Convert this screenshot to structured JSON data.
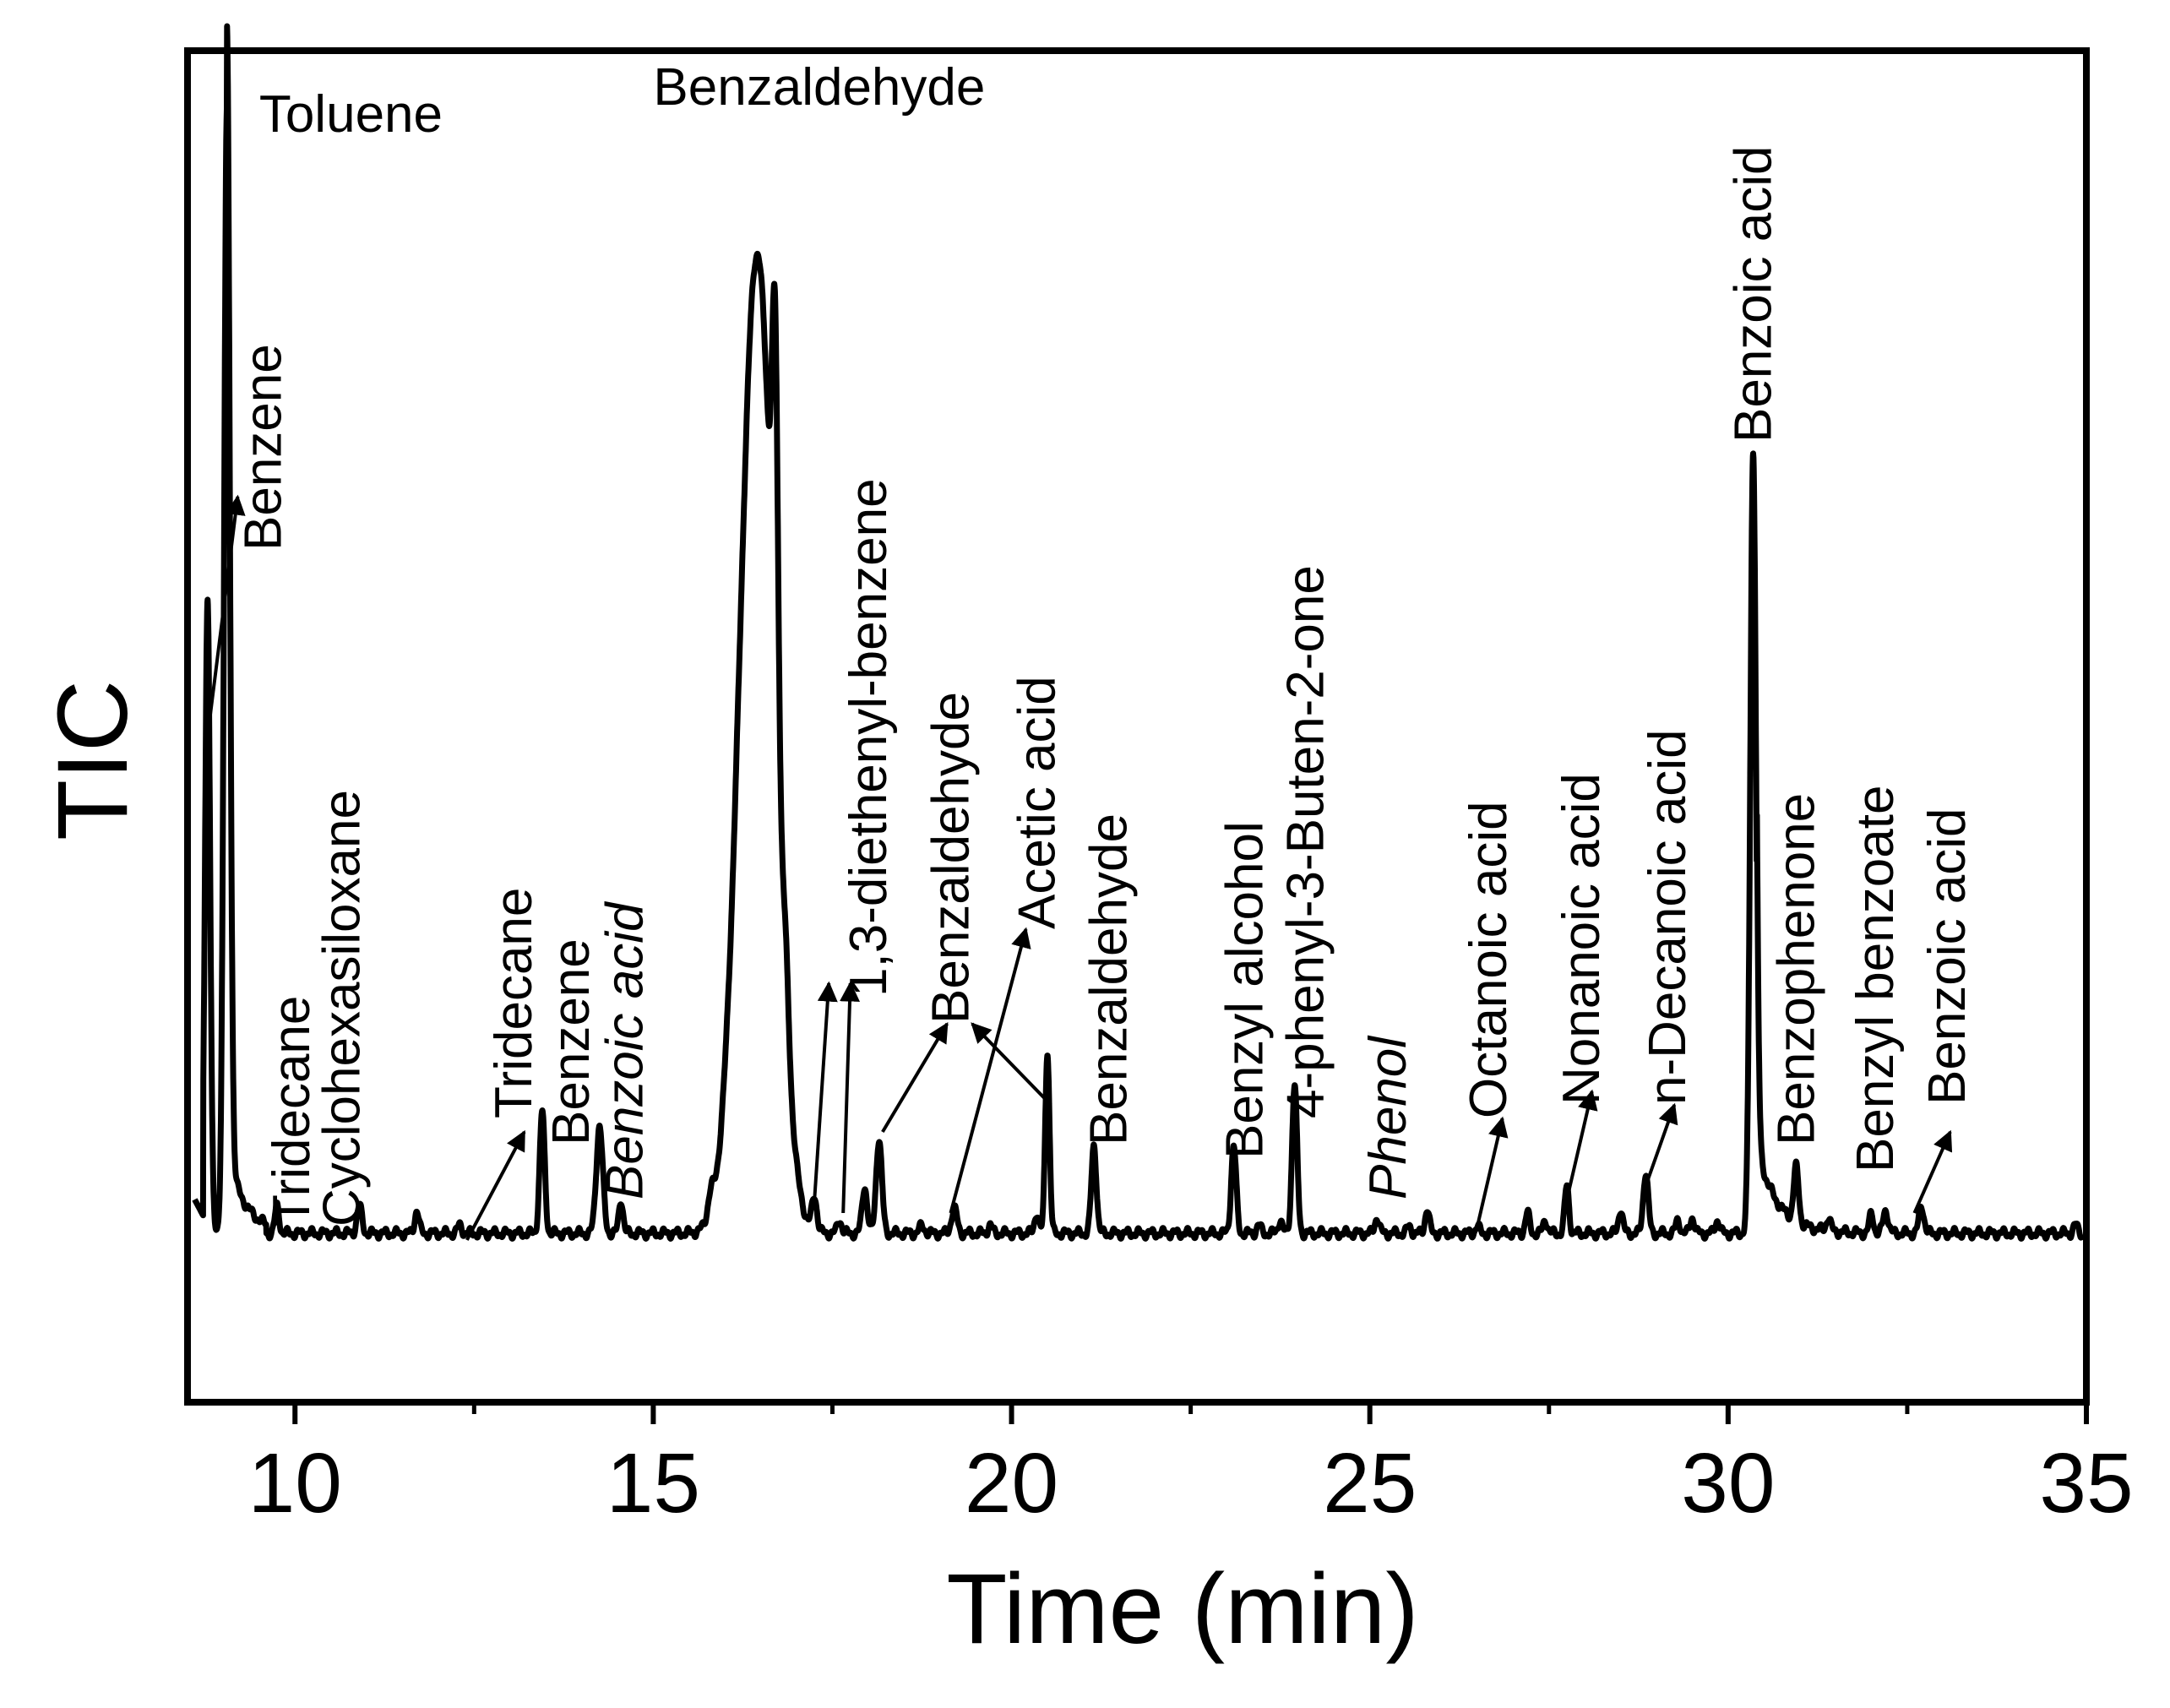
{
  "chart_data": {
    "type": "line",
    "title": "",
    "xlabel": "Time (min)",
    "ylabel": "TIC",
    "xlim": [
      8.5,
      35
    ],
    "ylim": [
      0,
      1
    ],
    "x_ticks": [
      10,
      15,
      20,
      25,
      30,
      35
    ],
    "x_tick_labels": [
      "10",
      "15",
      "20",
      "25",
      "30",
      "35"
    ],
    "grid": false,
    "legend": "none",
    "baseline": 0.125,
    "peaks": [
      {
        "t": 8.78,
        "h": 0.47,
        "w": 0.035
      },
      {
        "t": 9.05,
        "h": 0.83,
        "w": 0.04
      },
      {
        "t": 9.75,
        "h": 0.02,
        "w": 0.03
      },
      {
        "t": 10.9,
        "h": 0.02,
        "w": 0.035
      },
      {
        "t": 11.7,
        "h": 0.017,
        "w": 0.03
      },
      {
        "t": 12.3,
        "h": 0.006,
        "w": 0.03
      },
      {
        "t": 13.45,
        "h": 0.09,
        "w": 0.035
      },
      {
        "t": 14.25,
        "h": 0.08,
        "w": 0.045
      },
      {
        "t": 14.55,
        "h": 0.025,
        "w": 0.03
      },
      {
        "t": 15.8,
        "h": 0.015,
        "w": 0.04
      },
      {
        "t": 16.45,
        "h": 0.725,
        "w": 0.24
      },
      {
        "t": 16.7,
        "h": 0.27,
        "w": 0.04
      },
      {
        "t": 16.85,
        "h": 0.04,
        "w": 0.04
      },
      {
        "t": 17.25,
        "h": 0.025,
        "w": 0.035
      },
      {
        "t": 17.6,
        "h": 0.01,
        "w": 0.03
      },
      {
        "t": 17.95,
        "h": 0.035,
        "w": 0.035
      },
      {
        "t": 18.15,
        "h": 0.07,
        "w": 0.04
      },
      {
        "t": 18.75,
        "h": 0.005,
        "w": 0.04
      },
      {
        "t": 19.2,
        "h": 0.018,
        "w": 0.04
      },
      {
        "t": 19.7,
        "h": 0.006,
        "w": 0.03
      },
      {
        "t": 20.35,
        "h": 0.015,
        "w": 0.03
      },
      {
        "t": 20.5,
        "h": 0.135,
        "w": 0.03
      },
      {
        "t": 21.15,
        "h": 0.065,
        "w": 0.035
      },
      {
        "t": 23.1,
        "h": 0.065,
        "w": 0.035
      },
      {
        "t": 23.45,
        "h": 0.006,
        "w": 0.03
      },
      {
        "t": 23.75,
        "h": 0.01,
        "w": 0.03
      },
      {
        "t": 23.95,
        "h": 0.11,
        "w": 0.035
      },
      {
        "t": 25.1,
        "h": 0.012,
        "w": 0.03
      },
      {
        "t": 25.55,
        "h": 0.005,
        "w": 0.03
      },
      {
        "t": 25.8,
        "h": 0.018,
        "w": 0.03
      },
      {
        "t": 26.5,
        "h": 0.005,
        "w": 0.03
      },
      {
        "t": 27.2,
        "h": 0.015,
        "w": 0.03
      },
      {
        "t": 27.45,
        "h": 0.01,
        "w": 0.03
      },
      {
        "t": 27.75,
        "h": 0.035,
        "w": 0.03
      },
      {
        "t": 28.5,
        "h": 0.018,
        "w": 0.03
      },
      {
        "t": 28.85,
        "h": 0.045,
        "w": 0.035
      },
      {
        "t": 29.3,
        "h": 0.01,
        "w": 0.03
      },
      {
        "t": 29.5,
        "h": 0.012,
        "w": 0.03
      },
      {
        "t": 29.85,
        "h": 0.01,
        "w": 0.03
      },
      {
        "t": 30.35,
        "h": 0.58,
        "w": 0.04
      },
      {
        "t": 30.95,
        "h": 0.04,
        "w": 0.035
      },
      {
        "t": 31.4,
        "h": 0.01,
        "w": 0.03
      },
      {
        "t": 32.0,
        "h": 0.014,
        "w": 0.03
      },
      {
        "t": 32.2,
        "h": 0.017,
        "w": 0.035
      },
      {
        "t": 32.7,
        "h": 0.02,
        "w": 0.035
      },
      {
        "t": 34.85,
        "h": 0.006,
        "w": 0.03
      }
    ],
    "tailing": [
      {
        "start": 30.4,
        "end": 34.0,
        "amplitude": 0.065,
        "decay": 0.28
      }
    ],
    "annotations": [
      {
        "id": "toluene",
        "text": "Toluene",
        "x": 9.5,
        "y": 0.94,
        "orient": "h"
      },
      {
        "id": "benzene-1",
        "text": "Benzene",
        "x": 9.8,
        "y": 0.63,
        "orient": "v",
        "arrow": {
          "from": [
            8.75,
            0.48
          ],
          "to": [
            9.2,
            0.67
          ]
        }
      },
      {
        "id": "tridecane-1",
        "text": "Tridecane",
        "x": 10.2,
        "y": 0.13,
        "orient": "v"
      },
      {
        "id": "cyclohexasiloxane",
        "text": "Cyclohexasiloxane",
        "x": 10.9,
        "y": 0.13,
        "orient": "v"
      },
      {
        "id": "tridecane-2",
        "text": "Tridecane",
        "x": 13.3,
        "y": 0.21,
        "orient": "v",
        "arrow": {
          "from": [
            12.4,
            0.12
          ],
          "to": [
            13.2,
            0.2
          ]
        }
      },
      {
        "id": "benzene-2",
        "text": "Benzene",
        "x": 14.1,
        "y": 0.19,
        "orient": "v"
      },
      {
        "id": "benzoic-acid-1",
        "text": "Benzoic acid",
        "x": 14.85,
        "y": 0.15,
        "orient": "v",
        "italic": true
      },
      {
        "id": "benzaldehyde-main",
        "text": "Benzaldehyde",
        "x": 15.0,
        "y": 0.96,
        "orient": "h"
      },
      {
        "id": "diethenyl-benzene",
        "text": "1,3-diethenyl-benzene",
        "x": 18.25,
        "y": 0.3,
        "orient": "v",
        "arrow": {
          "from": [
            17.25,
            0.15
          ],
          "to": [
            17.45,
            0.31
          ]
        },
        "arrow2": {
          "from": [
            17.65,
            0.14
          ],
          "to": [
            17.75,
            0.31
          ]
        }
      },
      {
        "id": "benzaldehyde-2",
        "text": "Benzaldehyde",
        "x": 19.4,
        "y": 0.28,
        "orient": "v",
        "arrow": {
          "from": [
            18.2,
            0.2
          ],
          "to": [
            19.1,
            0.28
          ]
        },
        "arrow2": {
          "from": [
            20.55,
            0.22
          ],
          "to": [
            19.45,
            0.28
          ]
        }
      },
      {
        "id": "acetic-acid",
        "text": "Acetic acid",
        "x": 20.6,
        "y": 0.35,
        "orient": "v",
        "arrow": {
          "from": [
            19.15,
            0.14
          ],
          "to": [
            20.2,
            0.35
          ]
        }
      },
      {
        "id": "benzaldehyde-3",
        "text": "Benzaldehyde",
        "x": 21.6,
        "y": 0.19,
        "orient": "v"
      },
      {
        "id": "benzyl-alcohol",
        "text": "Benzyl alcohol",
        "x": 23.5,
        "y": 0.18,
        "orient": "v"
      },
      {
        "id": "phenyl-buten-one",
        "text": "4-phenyl-3-Buten-2-one",
        "x": 24.35,
        "y": 0.21,
        "orient": "v"
      },
      {
        "id": "phenol",
        "text": "Phenol",
        "x": 25.5,
        "y": 0.15,
        "orient": "v",
        "italic": true
      },
      {
        "id": "octanoic-acid",
        "text": "Octanoic acid",
        "x": 26.9,
        "y": 0.21,
        "orient": "v",
        "arrow": {
          "from": [
            26.5,
            0.13
          ],
          "to": [
            26.85,
            0.21
          ]
        }
      },
      {
        "id": "nonanoic-acid",
        "text": "Nonanoic acid",
        "x": 28.2,
        "y": 0.22,
        "orient": "v",
        "arrow": {
          "from": [
            27.75,
            0.15
          ],
          "to": [
            28.1,
            0.23
          ]
        }
      },
      {
        "id": "n-decanoic-acid",
        "text": "n-Decanoic acid",
        "x": 29.4,
        "y": 0.22,
        "orient": "v",
        "arrow": {
          "from": [
            28.85,
            0.16
          ],
          "to": [
            29.25,
            0.22
          ]
        }
      },
      {
        "id": "benzoic-acid-2",
        "text": "Benzoic acid",
        "x": 30.6,
        "y": 0.71,
        "orient": "v"
      },
      {
        "id": "benzophenone",
        "text": "Benzophenone",
        "x": 31.2,
        "y": 0.19,
        "orient": "v"
      },
      {
        "id": "benzyl-benzoate",
        "text": "Benzyl benzoate",
        "x": 32.3,
        "y": 0.17,
        "orient": "v"
      },
      {
        "id": "benzoic-acid-3",
        "text": "Benzoic acid",
        "x": 33.3,
        "y": 0.22,
        "orient": "v",
        "arrow": {
          "from": [
            32.6,
            0.14
          ],
          "to": [
            33.1,
            0.2
          ]
        }
      }
    ]
  }
}
